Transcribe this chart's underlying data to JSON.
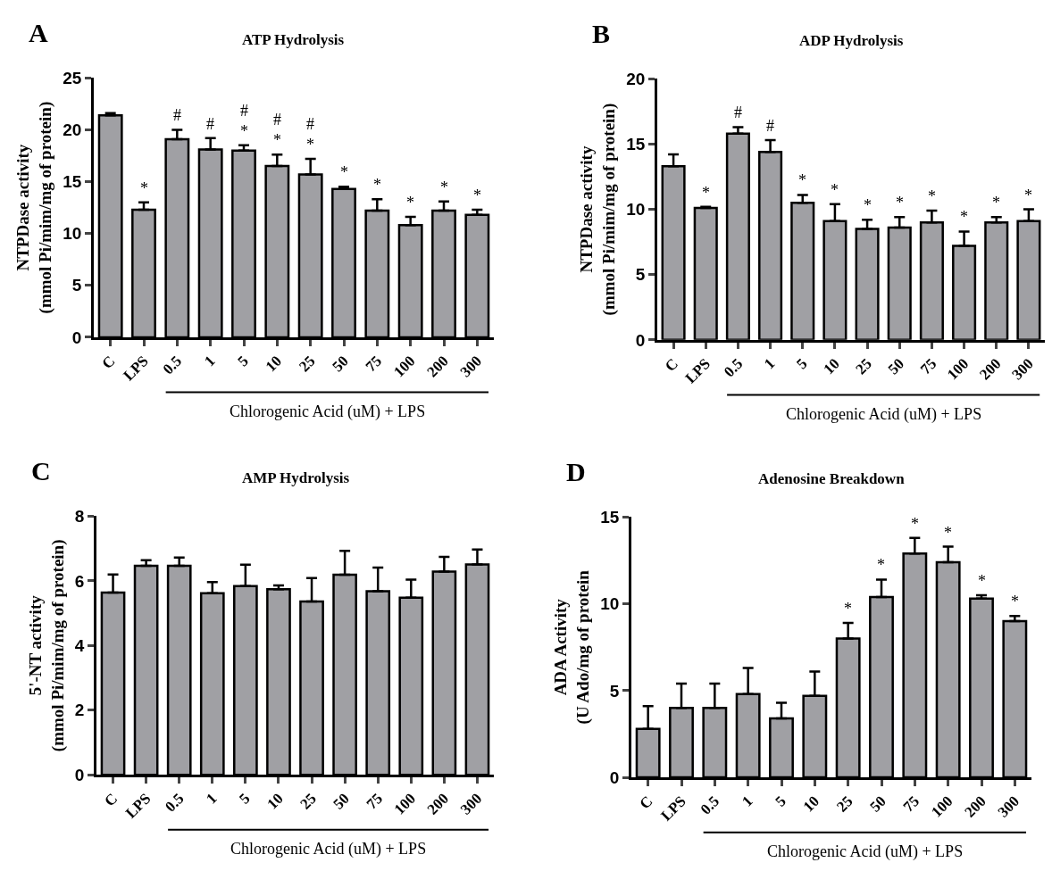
{
  "chart_data": [
    {
      "type": "bar",
      "title": "ATP Hydrolysis",
      "ylabel": "NTPDase activity\n(mmol Pi/mim/mg of protein)",
      "xlabel": "Chlorogenic Acid (uM) + LPS",
      "categories": [
        "C",
        "LPS",
        "0.5",
        "1",
        "5",
        "10",
        "25",
        "50",
        "75",
        "100",
        "200",
        "300"
      ],
      "values": [
        21.4,
        12.3,
        19.1,
        18.1,
        18.0,
        16.5,
        15.7,
        14.3,
        12.2,
        10.8,
        12.2,
        11.8
      ],
      "errors": [
        [
          21.4,
          21.6
        ],
        [
          12.3,
          13.0
        ],
        [
          19.1,
          20.0
        ],
        [
          18.1,
          19.2
        ],
        [
          18.0,
          18.5
        ],
        [
          16.5,
          17.6
        ],
        [
          15.7,
          17.2
        ],
        [
          14.3,
          14.5
        ],
        [
          12.2,
          13.3
        ],
        [
          10.8,
          11.6
        ],
        [
          12.2,
          13.1
        ],
        [
          11.8,
          12.3
        ]
      ],
      "value_labels": [
        null,
        "*",
        "#",
        "#",
        "#\n*",
        "#\n*",
        "#\n*",
        "*",
        "*",
        "*",
        "*",
        "*"
      ],
      "color": "#a0a0a4",
      "ylim": [
        0,
        25
      ],
      "yticks": [
        0,
        5,
        10,
        15,
        20,
        25
      ],
      "annotations": [
        "A"
      ]
    },
    {
      "type": "bar",
      "title": "ADP Hydrolysis",
      "ylabel": "NTPDase activity\n(mmol Pi/mim/mg of protein)",
      "xlabel": "Chlorogenic Acid (uM) + LPS",
      "categories": [
        "C",
        "LPS",
        "0.5",
        "1",
        "5",
        "10",
        "25",
        "50",
        "75",
        "100",
        "200",
        "300"
      ],
      "values": [
        13.3,
        10.1,
        15.8,
        14.4,
        10.5,
        9.1,
        8.5,
        8.6,
        9.0,
        7.2,
        9.0,
        9.1
      ],
      "errors": [
        [
          13.3,
          14.2
        ],
        [
          10.1,
          10.2
        ],
        [
          15.8,
          16.3
        ],
        [
          14.4,
          15.3
        ],
        [
          10.5,
          11.1
        ],
        [
          9.1,
          10.4
        ],
        [
          8.5,
          9.2
        ],
        [
          8.6,
          9.4
        ],
        [
          9.0,
          9.9
        ],
        [
          7.2,
          8.3
        ],
        [
          9.0,
          9.4
        ],
        [
          9.1,
          10.0
        ]
      ],
      "value_labels": [
        null,
        "*",
        "#",
        "#",
        "*",
        "*",
        "*",
        "*",
        "*",
        "*",
        "*",
        "*"
      ],
      "color": "#a0a0a4",
      "ylim": [
        0,
        20
      ],
      "yticks": [
        0,
        5,
        10,
        15,
        20
      ],
      "annotations": [
        "B"
      ]
    },
    {
      "type": "bar",
      "title": "AMP Hydrolysis",
      "ylabel": "5'-NT activity\n(mmol Pi/mim/mg of protein)",
      "xlabel": "Chlorogenic Acid (uM) + LPS",
      "categories": [
        "C",
        "LPS",
        "0.5",
        "1",
        "5",
        "10",
        "25",
        "50",
        "75",
        "100",
        "200",
        "300"
      ],
      "values": [
        5.64,
        6.47,
        6.47,
        5.62,
        5.84,
        5.74,
        5.36,
        6.19,
        5.68,
        5.48,
        6.29,
        6.51
      ],
      "errors": [
        [
          5.64,
          6.2
        ],
        [
          6.47,
          6.64
        ],
        [
          6.47,
          6.72
        ],
        [
          5.62,
          5.96
        ],
        [
          5.84,
          6.5
        ],
        [
          5.74,
          5.86
        ],
        [
          5.36,
          6.09
        ],
        [
          6.19,
          6.93
        ],
        [
          5.68,
          6.41
        ],
        [
          5.48,
          6.04
        ],
        [
          6.29,
          6.74
        ],
        [
          6.51,
          6.97
        ]
      ],
      "color": "#a0a0a4",
      "ylim": [
        0,
        8
      ],
      "yticks": [
        0,
        2,
        4,
        6,
        8
      ],
      "annotations": [
        "C"
      ]
    },
    {
      "type": "bar",
      "title": "Adenosine Breakdown",
      "ylabel": "ADA Activity\n(U Ado/mg of protein",
      "xlabel": "Chlorogenic Acid (uM) + LPS",
      "categories": [
        "C",
        "LPS",
        "0.5",
        "1",
        "5",
        "10",
        "25",
        "50",
        "75",
        "100",
        "200",
        "300"
      ],
      "values": [
        2.8,
        4.0,
        4.0,
        4.8,
        3.4,
        4.7,
        8.0,
        10.4,
        12.9,
        12.4,
        10.3,
        9.0
      ],
      "errors": [
        [
          2.8,
          4.1
        ],
        [
          4.0,
          5.4
        ],
        [
          4.0,
          5.4
        ],
        [
          4.8,
          6.3
        ],
        [
          3.4,
          4.3
        ],
        [
          4.7,
          6.1
        ],
        [
          8.0,
          8.9
        ],
        [
          10.4,
          11.4
        ],
        [
          12.9,
          13.8
        ],
        [
          12.4,
          13.3
        ],
        [
          10.3,
          10.5
        ],
        [
          9.0,
          9.3
        ]
      ],
      "value_labels": [
        null,
        null,
        null,
        null,
        null,
        null,
        "*",
        "*",
        "*",
        "*",
        "*",
        "*"
      ],
      "color": "#a0a0a4",
      "ylim": [
        0,
        15
      ],
      "yticks": [
        0,
        5,
        10,
        15
      ],
      "annotations": [
        "D"
      ]
    }
  ]
}
